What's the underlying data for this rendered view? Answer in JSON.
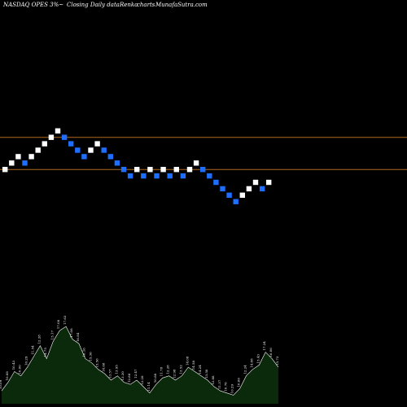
{
  "header": {
    "title": "NASDAQ OPES 3%~",
    "subtitle": "Closing Daily data",
    "chart_name": "Renko",
    "suffix": "charts",
    "watermark": "MunafaSutra.com"
  },
  "colors": {
    "background": "#000000",
    "up_brick": "#ffffff",
    "down_brick": "#1e6fff",
    "level_line": "#b06a1e",
    "volume_fill": "#0b2a0b",
    "volume_stroke": "#ffffff"
  },
  "chart_data": [
    {
      "type": "renko",
      "up_color": "#ffffff",
      "down_color": "#1e6fff",
      "bricks": [
        {
          "dir": "up",
          "level": 0
        },
        {
          "dir": "up",
          "level": 1
        },
        {
          "dir": "up",
          "level": 2
        },
        {
          "dir": "down",
          "level": 1
        },
        {
          "dir": "up",
          "level": 2
        },
        {
          "dir": "up",
          "level": 3
        },
        {
          "dir": "up",
          "level": 4
        },
        {
          "dir": "up",
          "level": 5
        },
        {
          "dir": "up",
          "level": 6
        },
        {
          "dir": "down",
          "level": 5
        },
        {
          "dir": "down",
          "level": 4
        },
        {
          "dir": "down",
          "level": 3
        },
        {
          "dir": "down",
          "level": 2
        },
        {
          "dir": "up",
          "level": 3
        },
        {
          "dir": "up",
          "level": 4
        },
        {
          "dir": "down",
          "level": 3
        },
        {
          "dir": "down",
          "level": 2
        },
        {
          "dir": "down",
          "level": 1
        },
        {
          "dir": "down",
          "level": 0
        },
        {
          "dir": "down",
          "level": -1
        },
        {
          "dir": "up",
          "level": 0
        },
        {
          "dir": "down",
          "level": -1
        },
        {
          "dir": "up",
          "level": 0
        },
        {
          "dir": "down",
          "level": -1
        },
        {
          "dir": "up",
          "level": 0
        },
        {
          "dir": "down",
          "level": -1
        },
        {
          "dir": "up",
          "level": 0
        },
        {
          "dir": "down",
          "level": -1
        },
        {
          "dir": "up",
          "level": 0
        },
        {
          "dir": "up",
          "level": 1
        },
        {
          "dir": "down",
          "level": 0
        },
        {
          "dir": "down",
          "level": -1
        },
        {
          "dir": "down",
          "level": -2
        },
        {
          "dir": "down",
          "level": -3
        },
        {
          "dir": "down",
          "level": -4
        },
        {
          "dir": "down",
          "level": -5
        },
        {
          "dir": "up",
          "level": -4
        },
        {
          "dir": "up",
          "level": -3
        },
        {
          "dir": "up",
          "level": -2
        },
        {
          "dir": "down",
          "level": -3
        },
        {
          "dir": "up",
          "level": -2
        }
      ],
      "horizontal_levels": [
        5,
        0
      ]
    },
    {
      "type": "area",
      "name": "volume",
      "values": [
        1.2,
        2.0,
        3.0,
        2.6,
        3.4,
        4.4,
        5.4,
        4.2,
        5.8,
        6.8,
        7.2,
        6.0,
        5.6,
        4.2,
        3.8,
        3.2,
        2.8,
        2.2,
        2.6,
        2.0,
        1.8,
        2.2,
        1.6,
        1.0,
        1.8,
        2.4,
        2.6,
        2.2,
        2.6,
        3.4,
        3.0,
        2.6,
        2.2,
        1.6,
        1.2,
        1.0,
        0.8,
        1.4,
        2.6,
        3.2,
        3.6,
        4.8,
        4.2,
        3.4
      ],
      "labels": [
        "10.09",
        "10.08",
        "10.43",
        "10.00",
        "10.29",
        "11.54",
        "12.28",
        "14.75",
        "15.17",
        "17.08",
        "17.63",
        "17.08",
        "16.84",
        "16.16",
        "15.36",
        "15.56",
        "14.68",
        "13.57",
        "13.95",
        "13.30",
        "12.88",
        "12.47",
        "12.28",
        "11.14",
        "10.88",
        "11.78",
        "12.28",
        "12.98",
        "13.52",
        "14.08",
        "14.58",
        "14.24",
        "13.50",
        "12.88",
        "11.37",
        "10.76",
        "10.29",
        "10.66",
        "12.24",
        "14.88",
        "15.43",
        "17.24",
        "16.06",
        "15.73"
      ],
      "ymin": 0
    }
  ]
}
